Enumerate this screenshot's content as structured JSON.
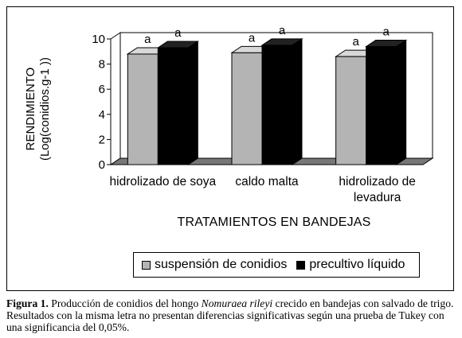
{
  "chart_data": {
    "type": "bar",
    "categories": [
      "hidrolizado de soya",
      "caldo malta",
      "hidrolizado de levadura"
    ],
    "series": [
      {
        "name": "suspensión de conidios",
        "values": [
          8.8,
          8.9,
          8.6
        ],
        "letters": [
          "a",
          "a",
          "a"
        ],
        "color": "#b4b4b4"
      },
      {
        "name": "precultivo líquido",
        "values": [
          9.3,
          9.5,
          9.4
        ],
        "letters": [
          "a",
          "a",
          "a"
        ],
        "color": "#000000"
      }
    ],
    "xlabel": "TRATAMIENTOS EN BANDEJAS",
    "ylabel": [
      "RENDIMIENTO",
      "(Log(conidios.g-1 ))"
    ],
    "ylim": [
      0,
      10
    ],
    "yticks": [
      0,
      2,
      4,
      6,
      8,
      10
    ],
    "grid": false,
    "legend_position": "bottom",
    "style": "3d"
  },
  "category_lines": [
    [
      "hidrolizado de soya"
    ],
    [
      "caldo malta"
    ],
    [
      "hidrolizado de",
      "levadura"
    ]
  ],
  "caption": {
    "label": "Figura 1.",
    "text_before": " Producción de conidios del hongo ",
    "species": "Nomuraea rileyi",
    "text_after": " crecido en bandejas con salvado de trigo. Resultados con la misma letra no presentan diferencias significativas según una prueba de Tukey con una significancia del 0,05%."
  }
}
